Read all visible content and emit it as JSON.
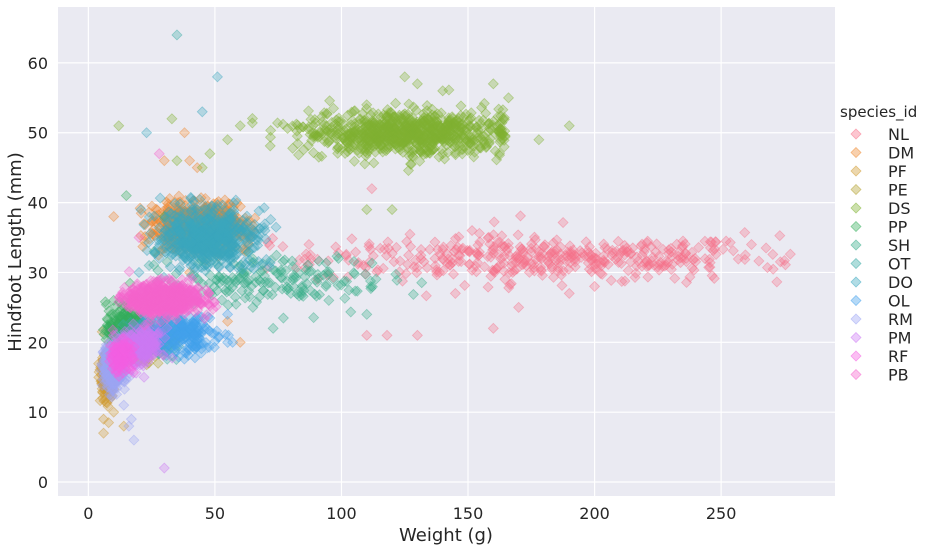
{
  "chart_data": {
    "type": "scatter",
    "title": "",
    "xlabel": "Weight (g)",
    "ylabel": "Hindfoot Length (mm)",
    "xlim": [
      -12,
      295
    ],
    "ylim": [
      -2,
      68
    ],
    "xticks": [
      0,
      50,
      100,
      150,
      200,
      250
    ],
    "yticks": [
      0,
      10,
      20,
      30,
      40,
      50,
      60
    ],
    "grid": true,
    "marker": "diamond",
    "background": "#eaeaf2",
    "legend_title": "species_id",
    "legend_placement": "right",
    "series": [
      {
        "name": "NL",
        "color": "#f77189",
        "clusters": [
          {
            "cx": 180,
            "cy": 32,
            "sx": 45,
            "sy": 1.6,
            "n": 420,
            "xmin": 70,
            "xmax": 278
          }
        ],
        "points": [
          [
            110,
            21
          ],
          [
            118,
            21
          ],
          [
            130,
            21
          ],
          [
            160,
            22
          ],
          [
            170,
            25
          ],
          [
            190,
            27
          ],
          [
            200,
            28
          ],
          [
            112,
            42
          ],
          [
            145,
            27
          ],
          [
            262,
            34
          ]
        ]
      },
      {
        "name": "DM",
        "color": "#ee8a33",
        "clusters": [
          {
            "cx": 44,
            "cy": 36.5,
            "sx": 9,
            "sy": 1.6,
            "n": 650,
            "xmin": 20,
            "xmax": 66
          }
        ],
        "points": [
          [
            38,
            50
          ],
          [
            10,
            38
          ],
          [
            22,
            37
          ],
          [
            30,
            46
          ],
          [
            40,
            46
          ],
          [
            43,
            45
          ],
          [
            40,
            30
          ],
          [
            55,
            23
          ],
          [
            60,
            20
          ],
          [
            36,
            33
          ]
        ]
      },
      {
        "name": "PF",
        "color": "#cf9a31",
        "clusters": [
          {
            "cx": 7.5,
            "cy": 15.5,
            "sx": 1.6,
            "sy": 1.8,
            "n": 170,
            "xmin": 4,
            "xmax": 13
          }
        ],
        "points": [
          [
            6,
            7
          ],
          [
            8,
            8.5
          ],
          [
            14,
            8
          ],
          [
            6,
            9
          ],
          [
            10,
            10
          ]
        ]
      },
      {
        "name": "PE",
        "color": "#b4a331",
        "clusters": [
          {
            "cx": 22,
            "cy": 20,
            "sx": 5,
            "sy": 1.2,
            "n": 160,
            "xmin": 12,
            "xmax": 40
          }
        ],
        "points": []
      },
      {
        "name": "DS",
        "color": "#80b232",
        "clusters": [
          {
            "cx": 125,
            "cy": 50,
            "sx": 20,
            "sy": 1.6,
            "n": 800,
            "xmin": 60,
            "xmax": 165
          }
        ],
        "points": [
          [
            12,
            51
          ],
          [
            33,
            52
          ],
          [
            35,
            46
          ],
          [
            45,
            45
          ],
          [
            48,
            47
          ],
          [
            55,
            49
          ],
          [
            60,
            51
          ],
          [
            110,
            39
          ],
          [
            120,
            39
          ],
          [
            125,
            58
          ],
          [
            130,
            57
          ],
          [
            140,
            56
          ],
          [
            160,
            57
          ],
          [
            178,
            49
          ],
          [
            190,
            51
          ],
          [
            166,
            55
          ]
        ]
      },
      {
        "name": "PP",
        "color": "#36ae5d",
        "clusters": [
          {
            "cx": 15,
            "cy": 22,
            "sx": 4,
            "sy": 1.8,
            "n": 220,
            "xmin": 5,
            "xmax": 32
          }
        ],
        "points": [
          [
            15,
            41
          ],
          [
            30,
            38
          ],
          [
            26,
            33
          ],
          [
            10,
            26
          ]
        ]
      },
      {
        "name": "SH",
        "color": "#37ad8a",
        "clusters": [
          {
            "cx": 75,
            "cy": 29,
            "sx": 22,
            "sy": 1.8,
            "n": 170,
            "xmin": 25,
            "xmax": 140
          }
        ],
        "points": [
          [
            65,
            25
          ],
          [
            73,
            22
          ],
          [
            80,
            27
          ],
          [
            95,
            26
          ],
          [
            110,
            24
          ],
          [
            45,
            32
          ],
          [
            58,
            29
          ]
        ]
      },
      {
        "name": "OT",
        "color": "#38aaa4",
        "clusters": [
          {
            "cx": 26,
            "cy": 21,
            "sx": 6,
            "sy": 1.5,
            "n": 150,
            "xmin": 10,
            "xmax": 45
          }
        ],
        "points": [
          [
            35,
            64
          ],
          [
            24,
            31
          ]
        ]
      },
      {
        "name": "DO",
        "color": "#3ba7bf",
        "clusters": [
          {
            "cx": 47,
            "cy": 35,
            "sx": 9,
            "sy": 2.0,
            "n": 650,
            "xmin": 20,
            "xmax": 75
          }
        ],
        "points": [
          [
            51,
            58
          ],
          [
            45,
            53
          ],
          [
            23,
            50
          ],
          [
            20,
            30
          ],
          [
            28,
            32
          ]
        ]
      },
      {
        "name": "OL",
        "color": "#43a1ec",
        "clusters": [
          {
            "cx": 38,
            "cy": 21,
            "sx": 7,
            "sy": 1.4,
            "n": 220,
            "xmin": 20,
            "xmax": 60
          }
        ],
        "points": [
          [
            57,
            20
          ],
          [
            55,
            24
          ]
        ]
      },
      {
        "name": "RM",
        "color": "#9da6f4",
        "clusters": [
          {
            "cx": 10,
            "cy": 16.5,
            "sx": 2.2,
            "sy": 1.7,
            "n": 330,
            "xmin": 5,
            "xmax": 20
          }
        ],
        "points": [
          [
            18,
            6
          ],
          [
            17,
            9
          ],
          [
            16,
            8
          ],
          [
            14,
            11
          ],
          [
            18,
            20
          ]
        ]
      },
      {
        "name": "PM",
        "color": "#cc7af4",
        "clusters": [
          {
            "cx": 21,
            "cy": 19.5,
            "sx": 4,
            "sy": 1.3,
            "n": 220,
            "xmin": 12,
            "xmax": 35
          }
        ],
        "points": [
          [
            30,
            2
          ],
          [
            22,
            15
          ]
        ]
      },
      {
        "name": "RF",
        "color": "#f45fe2",
        "clusters": [
          {
            "cx": 13,
            "cy": 18,
            "sx": 2.5,
            "sy": 1.2,
            "n": 130,
            "xmin": 8,
            "xmax": 20
          }
        ],
        "points": []
      },
      {
        "name": "PB",
        "color": "#f565cc",
        "clusters": [
          {
            "cx": 30,
            "cy": 26.2,
            "sx": 7,
            "sy": 1.1,
            "n": 700,
            "xmin": 12,
            "xmax": 52
          }
        ],
        "points": [
          [
            28,
            47
          ],
          [
            20,
            35
          ]
        ]
      }
    ]
  }
}
